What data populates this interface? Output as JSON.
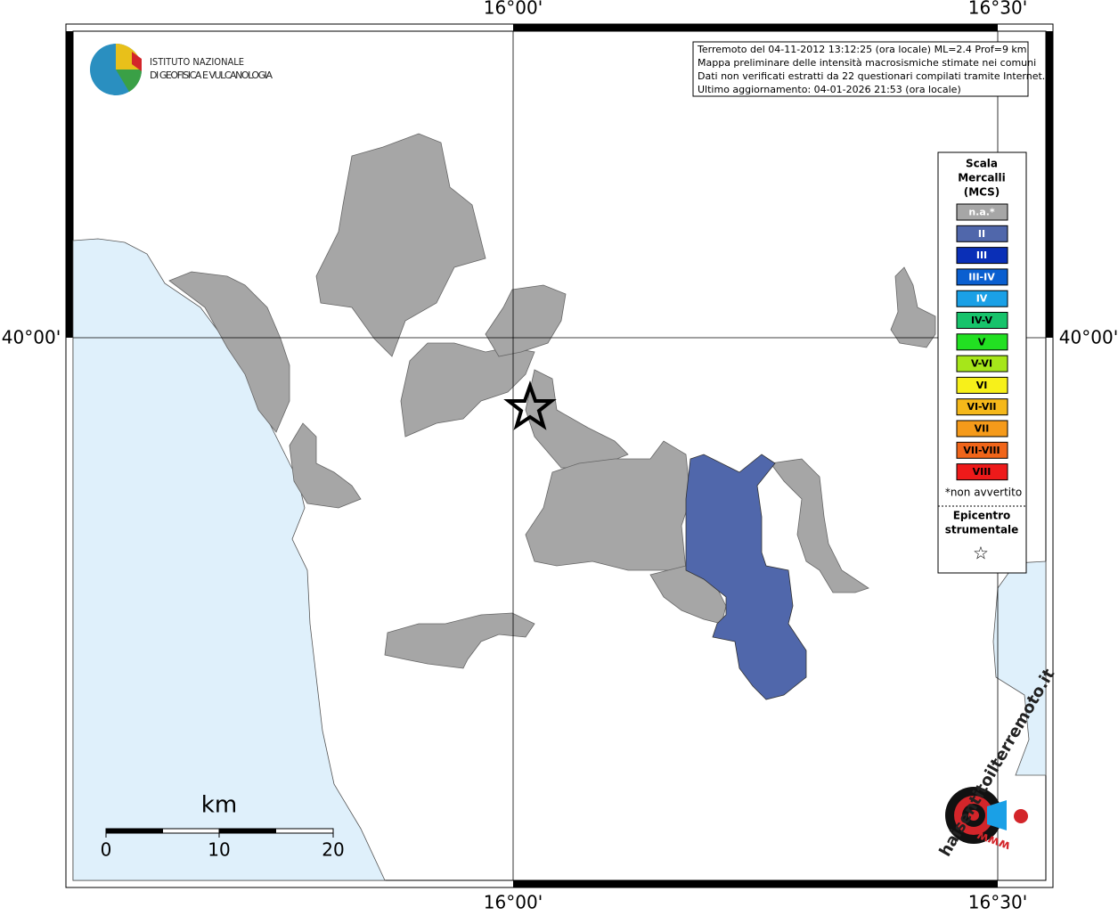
{
  "map": {
    "axis_labels": {
      "top": [
        "16°00'",
        "16°30'"
      ],
      "bottom": [
        "16°00'",
        "16°30'"
      ],
      "left": "40°00'",
      "right": "40°00'"
    },
    "logo": {
      "line1": "ISTITUTO NAZIONALE",
      "line2": "DI GEOFISICA E VULCANOLOGIA"
    },
    "info": [
      "Terremoto del 04-11-2012 13:12:25 (ora locale) ML=2.4 Prof=9 km",
      "Mappa preliminare delle intensità macrosismiche stimate nei comuni",
      "Dati non verificati estratti da 22 questionari compilati tramite Internet.",
      "Ultimo aggiornamento: 04-01-2026 21:53 (ora locale)"
    ],
    "legend": {
      "title": [
        "Scala",
        "Mercalli",
        "(MCS)"
      ],
      "items": [
        {
          "label": "n.a.*",
          "color": "#a6a6a6",
          "text_color": "#ffffff"
        },
        {
          "label": "II",
          "color": "#5067ab",
          "text_color": "#ffffff"
        },
        {
          "label": "III",
          "color": "#0a2fb7",
          "text_color": "#ffffff"
        },
        {
          "label": "III-IV",
          "color": "#0a5fd0",
          "text_color": "#ffffff"
        },
        {
          "label": "IV",
          "color": "#1aa0e6",
          "text_color": "#ffffff"
        },
        {
          "label": "IV-V",
          "color": "#17c36b",
          "text_color": "#000000"
        },
        {
          "label": "V",
          "color": "#22e022",
          "text_color": "#000000"
        },
        {
          "label": "V-VI",
          "color": "#a6e61a",
          "text_color": "#000000"
        },
        {
          "label": "VI",
          "color": "#f7f01a",
          "text_color": "#000000"
        },
        {
          "label": "VI-VII",
          "color": "#f5b81a",
          "text_color": "#000000"
        },
        {
          "label": "VII",
          "color": "#f59a1a",
          "text_color": "#000000"
        },
        {
          "label": "VII-VIII",
          "color": "#f0651a",
          "text_color": "#000000"
        },
        {
          "label": "VIII",
          "color": "#ee1a1a",
          "text_color": "#000000"
        }
      ],
      "note": "*non avvertito",
      "epicenter": [
        "Epicentro",
        "strumentale"
      ],
      "star": "☆"
    },
    "scale_bar": {
      "unit": "km",
      "labels": [
        "0",
        "10",
        "20"
      ]
    },
    "site_logo": {
      "name": "haisentitoilterremoto.it",
      "www": "www."
    }
  }
}
